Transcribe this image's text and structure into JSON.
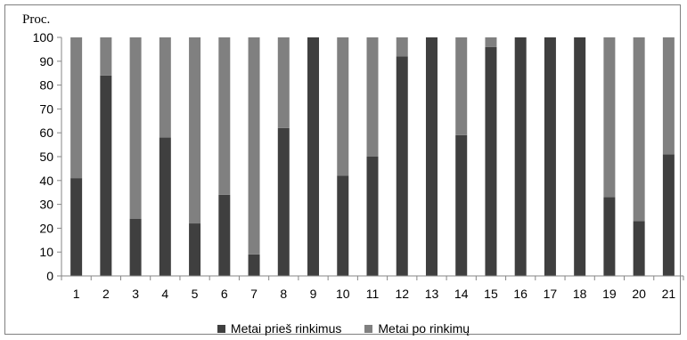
{
  "chart_data": {
    "type": "bar",
    "stacked": true,
    "title": "",
    "xlabel": "",
    "ylabel": "Proc.",
    "ylim": [
      0,
      100
    ],
    "yticks": [
      0,
      10,
      20,
      30,
      40,
      50,
      60,
      70,
      80,
      90,
      100
    ],
    "categories": [
      "1",
      "2",
      "3",
      "4",
      "5",
      "6",
      "7",
      "8",
      "9",
      "10",
      "11",
      "12",
      "13",
      "14",
      "15",
      "16",
      "17",
      "18",
      "19",
      "20",
      "21"
    ],
    "series": [
      {
        "name": "Metai prieš rinkimus",
        "color": "#3f3f3f",
        "values": [
          41,
          84,
          24,
          58,
          22,
          34,
          9,
          62,
          100,
          42,
          50,
          92,
          100,
          59,
          96,
          100,
          100,
          100,
          33,
          23,
          51
        ]
      },
      {
        "name": "Metai po rinkimų",
        "color": "#808080",
        "values": [
          59,
          16,
          76,
          42,
          78,
          66,
          91,
          38,
          0,
          58,
          50,
          8,
          0,
          41,
          4,
          0,
          0,
          0,
          67,
          77,
          49
        ]
      }
    ],
    "grid": false,
    "legend": "bottom"
  }
}
